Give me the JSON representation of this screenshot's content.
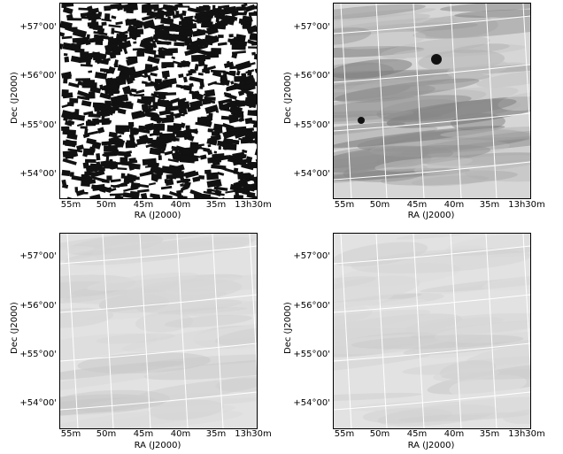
{
  "panels": [
    {
      "id": "top-left",
      "xlabel": "RA (J2000)",
      "ylabel": "Dec (J2000)",
      "x_ticks": [
        "55m",
        "50m",
        "45m",
        "40m",
        "35m",
        "13h30m"
      ],
      "y_ticks": [
        "+57°00'",
        "+56°00'",
        "+55°00'",
        "+54°00'"
      ],
      "style": "noisy-black-white"
    },
    {
      "id": "top-right",
      "xlabel": "RA (J2000)",
      "ylabel": "Dec (J2000)",
      "x_ticks": [
        "55m",
        "50m",
        "45m",
        "40m",
        "35m",
        "13h30m"
      ],
      "y_ticks": [
        "+57°00'",
        "+56°00'",
        "+55°00'",
        "+54°00'"
      ],
      "style": "gray-with-sources"
    },
    {
      "id": "bottom-left",
      "xlabel": "RA (J2000)",
      "ylabel": "Dec (J2000)",
      "x_ticks": [
        "55m",
        "50m",
        "45m",
        "40m",
        "35m",
        "13h30m"
      ],
      "y_ticks": [
        "+57°00'",
        "+56°00'",
        "+55°00'",
        "+54°00'"
      ],
      "style": "light-gray"
    },
    {
      "id": "bottom-right",
      "xlabel": "RA (J2000)",
      "ylabel": "Dec (J2000)",
      "x_ticks": [
        "55m",
        "50m",
        "45m",
        "40m",
        "35m",
        "13h30m"
      ],
      "y_ticks": [
        "+57°00'",
        "+56°00'",
        "+55°00'",
        "+54°00'"
      ],
      "style": "light-gray"
    }
  ]
}
